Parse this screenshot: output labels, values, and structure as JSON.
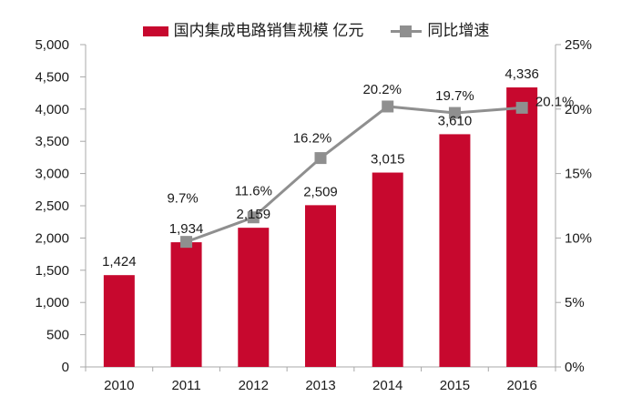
{
  "legend": {
    "bar_label": "国内集成电路销售规模 亿元",
    "line_label": "同比增速"
  },
  "colors": {
    "bar": "#C7082E",
    "line": "#8F8F8F",
    "axis": "#A8A8A8",
    "text": "#1A1A1A"
  },
  "chart_data": {
    "type": "bar+line",
    "title": "",
    "categories": [
      "2010",
      "2011",
      "2012",
      "2013",
      "2014",
      "2015",
      "2016"
    ],
    "series": [
      {
        "name": "国内集成电路销售规模 亿元",
        "type": "bar",
        "axis": "left",
        "color": "#C7082E",
        "values": [
          1424,
          1934,
          2159,
          2509,
          3015,
          3610,
          4336
        ],
        "data_labels": [
          "1,424",
          "1,934",
          "2,159",
          "2,509",
          "3,015",
          "3,610",
          "4,336"
        ]
      },
      {
        "name": "同比增速",
        "type": "line",
        "axis": "right",
        "color": "#8F8F8F",
        "values": [
          null,
          9.7,
          11.6,
          16.2,
          20.2,
          19.7,
          20.1
        ],
        "data_labels": [
          null,
          "9.7%",
          "11.6%",
          "16.2%",
          "20.2%",
          "19.7%",
          "20.1%"
        ]
      }
    ],
    "left_axis": {
      "min": 0,
      "max": 5000,
      "step": 500,
      "tick_labels": [
        "0",
        "500",
        "1,000",
        "1,500",
        "2,000",
        "2,500",
        "3,000",
        "3,500",
        "4,000",
        "4,500",
        "5,000"
      ]
    },
    "right_axis": {
      "min": 0,
      "max": 25,
      "step": 5,
      "tick_labels": [
        "0%",
        "5%",
        "10%",
        "15%",
        "20%",
        "25%"
      ]
    },
    "grid": false,
    "legend_position": "top"
  }
}
